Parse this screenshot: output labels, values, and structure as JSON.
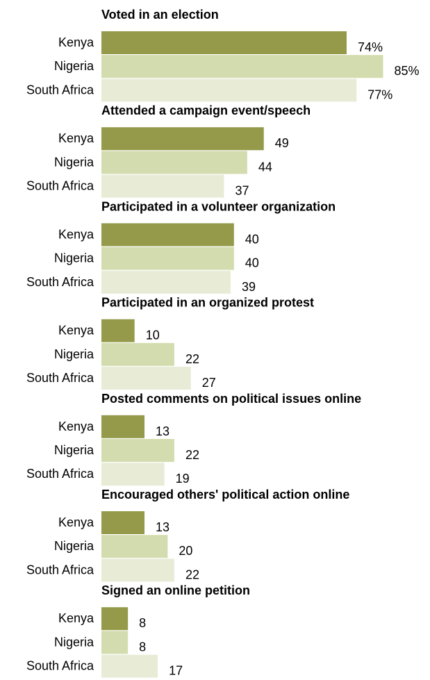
{
  "chart_data": {
    "type": "bar",
    "orientation": "horizontal",
    "colors": {
      "Kenya": "#949a4a",
      "Nigeria": "#d3dcae",
      "South Africa": "#e8ecd7"
    },
    "percent_suffix_on_first_panel": true,
    "xlim": [
      0,
      85
    ],
    "panels": [
      {
        "title": "Voted in an election",
        "categories": [
          "Kenya",
          "Nigeria",
          "South Africa"
        ],
        "values": [
          74,
          85,
          77
        ],
        "labels": [
          "74%",
          "85%",
          "77%"
        ]
      },
      {
        "title": "Attended a campaign event/speech",
        "categories": [
          "Kenya",
          "Nigeria",
          "South Africa"
        ],
        "values": [
          49,
          44,
          37
        ],
        "labels": [
          "49",
          "44",
          "37"
        ]
      },
      {
        "title": "Participated in a volunteer organization",
        "categories": [
          "Kenya",
          "Nigeria",
          "South Africa"
        ],
        "values": [
          40,
          40,
          39
        ],
        "labels": [
          "40",
          "40",
          "39"
        ]
      },
      {
        "title": "Participated in an organized protest",
        "categories": [
          "Kenya",
          "Nigeria",
          "South Africa"
        ],
        "values": [
          10,
          22,
          27
        ],
        "labels": [
          "10",
          "22",
          "27"
        ]
      },
      {
        "title": "Posted comments on political issues online",
        "categories": [
          "Kenya",
          "Nigeria",
          "South Africa"
        ],
        "values": [
          13,
          22,
          19
        ],
        "labels": [
          "13",
          "22",
          "19"
        ]
      },
      {
        "title": "Encouraged others' political action online",
        "categories": [
          "Kenya",
          "Nigeria",
          "South Africa"
        ],
        "values": [
          13,
          20,
          22
        ],
        "labels": [
          "13",
          "20",
          "22"
        ]
      },
      {
        "title": "Signed an online petition",
        "categories": [
          "Kenya",
          "Nigeria",
          "South Africa"
        ],
        "values": [
          8,
          8,
          17
        ],
        "labels": [
          "8",
          "8",
          "17"
        ]
      }
    ]
  }
}
